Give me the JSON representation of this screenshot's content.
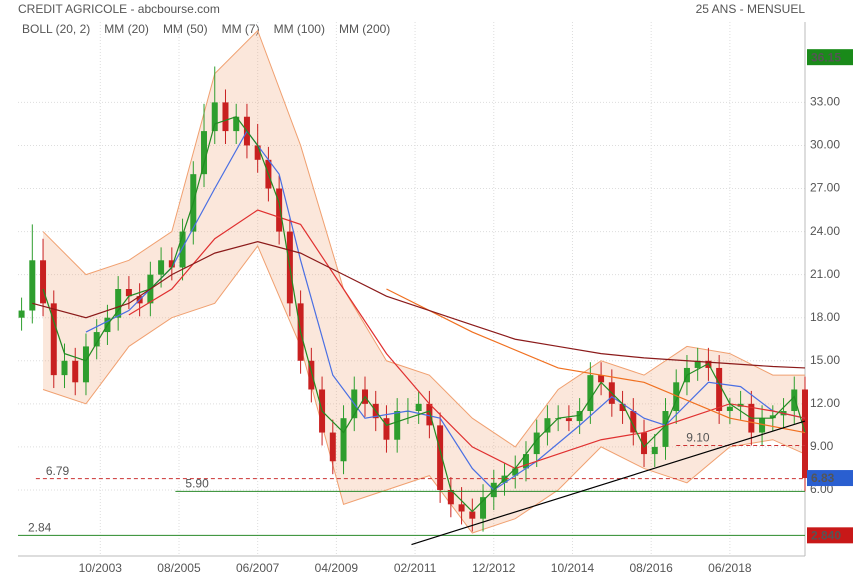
{
  "chart_data": {
    "type": "candlestick",
    "title": "CREDIT AGRICOLE - abcbourse.com",
    "subtitle": "25 ANS - MENSUEL",
    "x": [
      "2001-12",
      "2002-03",
      "2002-06",
      "2002-09",
      "2002-12",
      "2003-03",
      "2003-06",
      "2003-09",
      "2003-12",
      "2004-03",
      "2004-06",
      "2004-09",
      "2004-12",
      "2005-03",
      "2005-06",
      "2005-09",
      "2005-12",
      "2006-03",
      "2006-06",
      "2006-09",
      "2006-12",
      "2007-03",
      "2007-06",
      "2007-09",
      "2007-12",
      "2008-03",
      "2008-06",
      "2008-09",
      "2008-12",
      "2009-03",
      "2009-06",
      "2009-09",
      "2009-12",
      "2010-03",
      "2010-06",
      "2010-09",
      "2010-12",
      "2011-03",
      "2011-06",
      "2011-09",
      "2011-12",
      "2012-03",
      "2012-06",
      "2012-09",
      "2012-12",
      "2013-03",
      "2013-06",
      "2013-09",
      "2013-12",
      "2014-03",
      "2014-06",
      "2014-09",
      "2014-12",
      "2015-03",
      "2015-06",
      "2015-09",
      "2015-12",
      "2016-03",
      "2016-06",
      "2016-09",
      "2016-12",
      "2017-03",
      "2017-06",
      "2017-09",
      "2017-12",
      "2018-03",
      "2018-06",
      "2018-09",
      "2018-12",
      "2019-03",
      "2019-06",
      "2019-09",
      "2019-12",
      "2020-03"
    ],
    "open": [
      18,
      18.5,
      22,
      19,
      14,
      15,
      13.5,
      16,
      17,
      18,
      20,
      19.5,
      19,
      21,
      22,
      21.5,
      24,
      28,
      31,
      33,
      31,
      32,
      30,
      29,
      27,
      24,
      19,
      15,
      13,
      10,
      8,
      11,
      13,
      12,
      11,
      9.5,
      11.5,
      11.5,
      12,
      10.5,
      6,
      5,
      4.5,
      4,
      5.5,
      6.5,
      7,
      7.5,
      8.5,
      10,
      11,
      11,
      10.8,
      11.5,
      14,
      13.5,
      12,
      11.5,
      10,
      8.5,
      9,
      11.5,
      13.5,
      14.5,
      15,
      14.5,
      11.5,
      11.8,
      12,
      10,
      11,
      11.2,
      11.5,
      13
    ],
    "high": [
      19.4,
      24.5,
      23.5,
      19.9,
      16.2,
      15.9,
      16.9,
      17.9,
      18.9,
      20.9,
      20.9,
      20.4,
      21.9,
      22.9,
      22.9,
      24.9,
      28.9,
      32.9,
      35.5,
      33.9,
      32.9,
      32.9,
      31.5,
      29.9,
      27.9,
      24.9,
      19.9,
      15.9,
      13.9,
      10.9,
      11.9,
      13.9,
      13.9,
      12.9,
      11.9,
      12.4,
      12.4,
      12.9,
      12.9,
      11.4,
      6.9,
      6.2,
      5.4,
      6.4,
      7.4,
      7.9,
      8.4,
      9.4,
      10.9,
      11.9,
      11.9,
      11.9,
      12.4,
      14.9,
      14.9,
      14.4,
      12.9,
      12.4,
      10.9,
      9.9,
      12.4,
      14.4,
      15.4,
      15.9,
      15.9,
      15.4,
      12.4,
      12.9,
      12.9,
      11.9,
      11.9,
      12.4,
      13.9,
      13.9
    ],
    "low": [
      17.1,
      17.6,
      18.1,
      13.1,
      13.1,
      12.6,
      12.6,
      15.1,
      16.1,
      17.1,
      18.6,
      18.1,
      18.1,
      20.1,
      20.6,
      20.6,
      23.1,
      27.1,
      30.1,
      30.1,
      30.1,
      29.1,
      28.1,
      26.1,
      23.1,
      18.1,
      14.1,
      12.1,
      9.1,
      7.1,
      7.1,
      10.1,
      11.1,
      10.1,
      8.6,
      8.6,
      10.6,
      10.6,
      9.6,
      5.1,
      4.1,
      3.6,
      3.1,
      3.1,
      4.6,
      5.6,
      6.1,
      6.6,
      7.6,
      9.1,
      10.1,
      10.1,
      9.9,
      10.6,
      12.6,
      11.1,
      10.6,
      9.1,
      7.6,
      7.6,
      8.1,
      10.6,
      12.6,
      13.6,
      13.6,
      10.6,
      10.6,
      10.9,
      9.1,
      9.1,
      10.1,
      10.3,
      10.6,
      5.9
    ],
    "close": [
      18.5,
      22,
      19,
      14,
      15,
      13.5,
      16,
      17,
      18,
      20,
      19.5,
      19,
      21,
      22,
      21.5,
      24,
      28,
      31,
      33,
      31,
      32,
      30,
      29,
      27,
      24,
      19,
      15,
      13,
      10,
      8,
      11,
      13,
      12,
      11,
      9.5,
      11.5,
      11.5,
      12,
      10.5,
      6,
      5,
      4.5,
      4,
      5.5,
      6.5,
      7,
      7.5,
      8.5,
      10,
      11,
      11,
      10.8,
      11.5,
      14,
      13.5,
      12,
      11.5,
      10,
      8.5,
      9,
      11.5,
      13.5,
      14.5,
      15,
      14.5,
      11.5,
      11.8,
      12,
      10,
      11,
      11.2,
      11.5,
      13,
      6.83
    ],
    "bands": {
      "name": "BOLL (20, 2)",
      "color": "#f0a070",
      "x": [
        "2002-06",
        "2003-06",
        "2004-06",
        "2005-06",
        "2006-06",
        "2007-06",
        "2008-06",
        "2009-06",
        "2010-06",
        "2011-06",
        "2012-06",
        "2013-06",
        "2014-06",
        "2015-06",
        "2016-06",
        "2017-06",
        "2018-06",
        "2019-06",
        "2020-03"
      ],
      "upper": [
        24,
        21,
        22,
        24,
        35,
        38,
        30,
        20,
        15,
        14,
        11,
        9,
        13,
        15,
        14,
        16,
        15.5,
        14,
        14
      ],
      "lower": [
        13,
        12,
        16,
        18,
        19,
        23,
        16,
        5,
        6,
        7,
        3,
        4,
        6,
        9,
        7.5,
        6.5,
        9,
        9.5,
        8.5
      ]
    },
    "series": [
      {
        "name": "MM (20)",
        "color": "#4a6fe3",
        "x": [
          "2003-06",
          "2004-06",
          "2005-06",
          "2006-06",
          "2007-03",
          "2007-12",
          "2008-06",
          "2009-03",
          "2009-12",
          "2010-12",
          "2011-09",
          "2012-06",
          "2012-12",
          "2013-12",
          "2014-12",
          "2015-09",
          "2016-06",
          "2016-12",
          "2017-12",
          "2018-09",
          "2019-06",
          "2020-03"
        ],
        "values": [
          17,
          18.5,
          21.5,
          27,
          31,
          28,
          22,
          14,
          11,
          11.5,
          11,
          7.5,
          6,
          8,
          10.5,
          12.5,
          11,
          10.5,
          13.5,
          13.2,
          11.5,
          11
        ]
      },
      {
        "name": "MM (50)",
        "color": "#e03030",
        "x": [
          "2004-06",
          "2005-06",
          "2006-06",
          "2007-06",
          "2008-06",
          "2009-06",
          "2010-06",
          "2011-06",
          "2012-06",
          "2013-06",
          "2014-06",
          "2015-06",
          "2016-06",
          "2017-06",
          "2018-06",
          "2019-06",
          "2020-03"
        ],
        "values": [
          18.2,
          20,
          23.5,
          25.5,
          24.5,
          20,
          15.5,
          12,
          9,
          7.5,
          8.5,
          9.5,
          10,
          11,
          12,
          11.5,
          11
        ]
      },
      {
        "name": "MM (7)",
        "color": "#228b22",
        "x": [
          "2002-06",
          "2002-12",
          "2003-06",
          "2003-12",
          "2004-06",
          "2004-12",
          "2005-06",
          "2005-12",
          "2006-06",
          "2006-12",
          "2007-06",
          "2007-12",
          "2008-06",
          "2008-12",
          "2009-06",
          "2009-12",
          "2010-06",
          "2010-12",
          "2011-06",
          "2011-12",
          "2012-06",
          "2012-12",
          "2013-06",
          "2013-12",
          "2014-06",
          "2014-12",
          "2015-06",
          "2015-12",
          "2016-06",
          "2016-12",
          "2017-06",
          "2017-12",
          "2018-06",
          "2018-12",
          "2019-06",
          "2019-12",
          "2020-03"
        ],
        "values": [
          20,
          15.5,
          15,
          17.5,
          19.5,
          20,
          21.5,
          26,
          31.5,
          32,
          30,
          26,
          17,
          11.5,
          10,
          12.5,
          10.5,
          11,
          11.5,
          6,
          4.5,
          6,
          7.5,
          9.5,
          11,
          11.2,
          13.5,
          12,
          9,
          10.5,
          14,
          14.8,
          12,
          11,
          11,
          12.5,
          10
        ]
      },
      {
        "name": "MM (100)",
        "color": "#f07020",
        "x": [
          "2010-06",
          "2012-06",
          "2014-06",
          "2016-06",
          "2018-06",
          "2020-03"
        ],
        "values": [
          20,
          17,
          14.5,
          13.5,
          11,
          10
        ]
      },
      {
        "name": "MM (200)",
        "color": "#8b1a1a",
        "x": [
          "2002-03",
          "2003-06",
          "2004-06",
          "2005-06",
          "2006-06",
          "2007-06",
          "2008-06",
          "2009-06",
          "2010-06",
          "2011-06",
          "2012-06",
          "2013-06",
          "2014-06",
          "2015-06",
          "2016-06",
          "2017-06",
          "2018-06",
          "2019-06",
          "2020-03"
        ],
        "values": [
          19,
          18,
          19,
          21,
          22.5,
          23.3,
          22.5,
          21,
          19.5,
          18.5,
          17.5,
          16.5,
          16,
          15.5,
          15.2,
          15,
          14.8,
          14.6,
          14.5
        ]
      }
    ],
    "levels": [
      {
        "value": 6.79,
        "label": "6.79",
        "color": "#c33",
        "dashed": true,
        "from": "2002-04"
      },
      {
        "value": 5.9,
        "label": "5.90",
        "color": "#2a8a2a",
        "dashed": false,
        "from": "2005-07"
      },
      {
        "value": 2.84,
        "label": "2.84",
        "color": "#2a8a2a",
        "dashed": false,
        "from": "2001-11"
      },
      {
        "value": 9.1,
        "label": "9.10",
        "color": "#c33",
        "dashed": true,
        "from": "2017-03"
      }
    ],
    "trendline": {
      "x": [
        "2011-01",
        "2020-03"
      ],
      "values": [
        2.2,
        10.8
      ],
      "color": "#000"
    },
    "price_labels": [
      {
        "value": 36.15,
        "label": "36.15",
        "color": "#1a8a1a"
      },
      {
        "value": 6.83,
        "label": "6.83",
        "color": "#2a5fd0"
      },
      {
        "value": 2.84,
        "label": "2.840",
        "color": "#c81818"
      }
    ],
    "xlim": [
      "2001-11",
      "2020-03"
    ],
    "xticks": [
      {
        "value": "2003-10",
        "label": "10/2003"
      },
      {
        "value": "2005-08",
        "label": "08/2005"
      },
      {
        "value": "2007-06",
        "label": "06/2007"
      },
      {
        "value": "2009-04",
        "label": "04/2009"
      },
      {
        "value": "2011-02",
        "label": "02/2011"
      },
      {
        "value": "2012-12",
        "label": "12/2012"
      },
      {
        "value": "2014-10",
        "label": "10/2014"
      },
      {
        "value": "2016-08",
        "label": "08/2016"
      },
      {
        "value": "2018-06",
        "label": "06/2018"
      }
    ],
    "ylim": [
      1.4,
      38.6
    ],
    "yticks": [
      {
        "value": 6,
        "label": "6.00"
      },
      {
        "value": 9,
        "label": "9.00"
      },
      {
        "value": 12,
        "label": "12.00"
      },
      {
        "value": 15,
        "label": "15.00"
      },
      {
        "value": 18,
        "label": "18.00"
      },
      {
        "value": 21,
        "label": "21.00"
      },
      {
        "value": 24,
        "label": "24.00"
      },
      {
        "value": 27,
        "label": "27.00"
      },
      {
        "value": 30,
        "label": "30.00"
      },
      {
        "value": 33,
        "label": "33.00"
      }
    ],
    "grid": true
  }
}
